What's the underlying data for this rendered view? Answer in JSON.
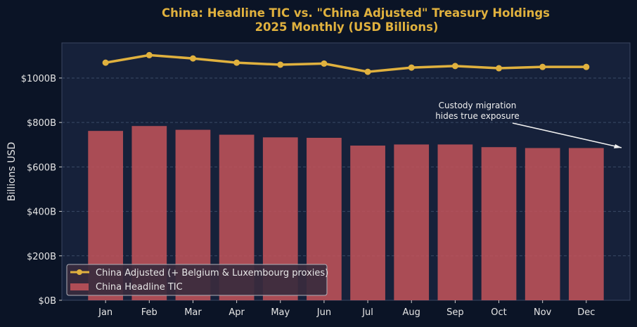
{
  "chart_data": {
    "type": "bar+line",
    "title": "China: Headline TIC vs. \"China Adjusted\" Treasury Holdings",
    "subtitle": "2025 Monthly (USD Billions)",
    "xlabel": "",
    "ylabel": "Billions USD",
    "categories": [
      "Jan",
      "Feb",
      "Mar",
      "Apr",
      "May",
      "Jun",
      "Jul",
      "Aug",
      "Sep",
      "Oct",
      "Nov",
      "Dec"
    ],
    "ylim": [
      0,
      1158
    ],
    "yticks": [
      0,
      200,
      400,
      600,
      800,
      1000
    ],
    "ytick_labels": [
      "$0B",
      "$200B",
      "$400B",
      "$600B",
      "$800B",
      "$1000B"
    ],
    "grid": "horizontal dashed",
    "legend_position": "lower-left",
    "series": [
      {
        "name": "China Adjusted (+ Belgium & Luxembourg proxies)",
        "type": "line",
        "color": "#e0b13e",
        "values": [
          1069,
          1103,
          1088,
          1069,
          1060,
          1065,
          1028,
          1047,
          1054,
          1044,
          1050,
          1050
        ]
      },
      {
        "name": "China Headline TIC",
        "type": "bar",
        "color": "#c4545a",
        "values": [
          762,
          784,
          767,
          745,
          733,
          731,
          696,
          701,
          701,
          689,
          685,
          685
        ]
      }
    ],
    "annotation": {
      "text_lines": [
        "Custody migration",
        "hides true exposure"
      ],
      "points_to": "Dec"
    },
    "colors": {
      "background": "#0b1426",
      "plot_background": "#16213a",
      "title": "#e0b13e",
      "text": "#e6e6e6"
    }
  }
}
